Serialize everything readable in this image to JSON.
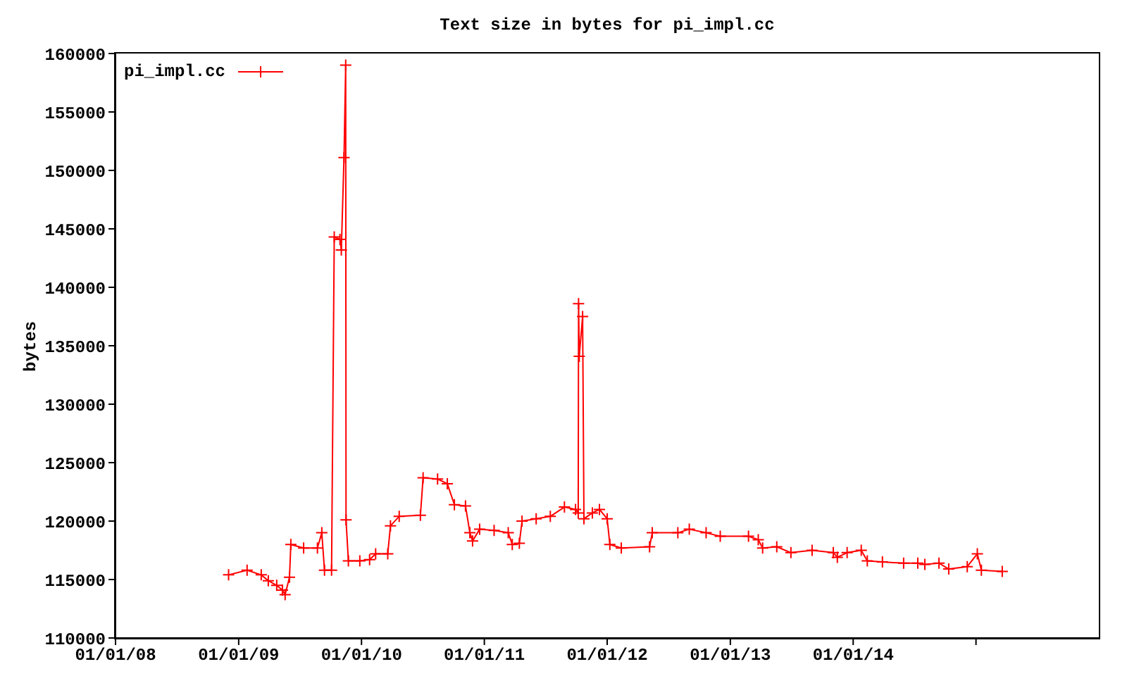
{
  "chart_data": {
    "type": "line",
    "title": "Text size in bytes for pi_impl.cc",
    "ylabel": "bytes",
    "xlim": [
      "2008-01-01",
      "2016-01-01"
    ],
    "xticks": [
      {
        "value": "2008-01-01",
        "label": "01/01/08"
      },
      {
        "value": "2009-01-01",
        "label": "01/01/09"
      },
      {
        "value": "2010-01-01",
        "label": "01/01/10"
      },
      {
        "value": "2011-01-01",
        "label": "01/01/11"
      },
      {
        "value": "2012-01-01",
        "label": "01/01/12"
      },
      {
        "value": "2013-01-01",
        "label": "01/01/13"
      },
      {
        "value": "2014-01-01",
        "label": "01/01/14"
      },
      {
        "value": "2015-01-01",
        "label": null
      }
    ],
    "ylim": [
      110000,
      160000
    ],
    "yticks": [
      110000,
      115000,
      120000,
      125000,
      130000,
      135000,
      140000,
      145000,
      150000,
      155000,
      160000
    ],
    "grid": false,
    "legend": "top left",
    "marker": "cross",
    "line_style": "solid",
    "x": [
      "2008-12-02",
      "2009-01-26",
      "2009-03-09",
      "2009-03-30",
      "2009-04-24",
      "2009-05-11",
      "2009-05-19",
      "2009-06-01",
      "2009-06-05",
      "2009-07-13",
      "2009-08-23",
      "2009-09-05",
      "2009-09-13",
      "2009-10-04",
      "2009-10-12",
      "2009-10-29",
      "2009-11-02",
      "2009-11-10",
      "2009-11-15",
      "2009-11-16",
      "2009-11-23",
      "2009-12-27",
      "2010-01-25",
      "2010-02-12",
      "2010-03-20",
      "2010-03-28",
      "2010-04-23",
      "2010-06-25",
      "2010-07-03",
      "2010-08-15",
      "2010-09-13",
      "2010-10-04",
      "2010-11-06",
      "2010-11-19",
      "2010-11-27",
      "2010-12-18",
      "2011-01-30",
      "2011-03-13",
      "2011-03-25",
      "2011-04-15",
      "2011-04-23",
      "2011-06-04",
      "2011-07-16",
      "2011-08-27",
      "2011-09-29",
      "2011-10-07",
      "2011-10-08",
      "2011-10-10",
      "2011-10-20",
      "2011-10-24",
      "2011-11-18",
      "2011-12-09",
      "2012-01-01",
      "2012-01-09",
      "2012-02-12",
      "2012-05-06",
      "2012-05-14",
      "2012-07-29",
      "2012-09-01",
      "2012-10-21",
      "2012-12-02",
      "2013-02-24",
      "2013-03-25",
      "2013-04-07",
      "2013-05-19",
      "2013-06-30",
      "2013-09-01",
      "2013-11-03",
      "2013-11-15",
      "2013-12-14",
      "2014-01-25",
      "2014-02-12",
      "2014-03-29",
      "2014-05-31",
      "2014-07-12",
      "2014-08-02",
      "2014-09-13",
      "2014-10-12",
      "2014-12-06",
      "2015-01-05",
      "2015-01-17",
      "2015-03-20"
    ],
    "series": [
      {
        "name": "pi_impl.cc",
        "color": "#ff0000",
        "values": [
          115400,
          115800,
          115400,
          114900,
          114500,
          114100,
          113700,
          115200,
          118000,
          117700,
          117700,
          119000,
          115800,
          115800,
          144300,
          144100,
          143200,
          151100,
          159000,
          120100,
          116600,
          116600,
          116700,
          117200,
          117200,
          119600,
          120400,
          120500,
          123700,
          123600,
          123200,
          121400,
          121300,
          119000,
          118300,
          119300,
          119200,
          119000,
          118000,
          118100,
          120000,
          120200,
          120400,
          121200,
          121000,
          120700,
          138600,
          134100,
          137500,
          120200,
          120700,
          121000,
          120200,
          118000,
          117700,
          117800,
          119000,
          119000,
          119300,
          119000,
          118700,
          118700,
          118400,
          117700,
          117800,
          117300,
          117500,
          117300,
          116900,
          117300,
          117500,
          116600,
          116500,
          116400,
          116400,
          116300,
          116400,
          115900,
          116100,
          117200,
          115800,
          115700
        ]
      }
    ]
  }
}
